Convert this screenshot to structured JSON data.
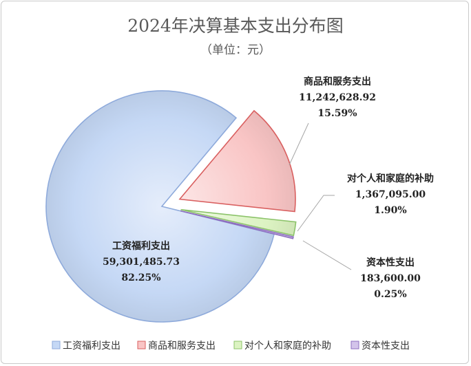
{
  "chart_data": {
    "type": "pie",
    "title": "2024年决算基本支出分布图",
    "subtitle": "（单位：元）",
    "legend_position": "bottom",
    "slices": [
      {
        "name": "工资福利支出",
        "value": 59301485.73,
        "value_label": "59,301,485.73",
        "percent_label": "82.25%",
        "color": "#c5d8f5"
      },
      {
        "name": "商品和服务支出",
        "value": 11242628.92,
        "value_label": "11,242,628.92",
        "percent_label": "15.59%",
        "color": "#f9c5c5"
      },
      {
        "name": "对个人和家庭的补助",
        "value": 1367095.0,
        "value_label": "1,367,095.00",
        "percent_label": "1.90%",
        "color": "#dcf3c2"
      },
      {
        "name": "资本性支出",
        "value": 183600.0,
        "value_label": "183,600.00",
        "percent_label": "0.25%",
        "color": "#d3c4ea"
      }
    ]
  },
  "colors": {
    "border": [
      "#8eaadb",
      "#d95f5f",
      "#8cc36a",
      "#8e6fc0"
    ],
    "leader_line": "#a6a6a6"
  }
}
